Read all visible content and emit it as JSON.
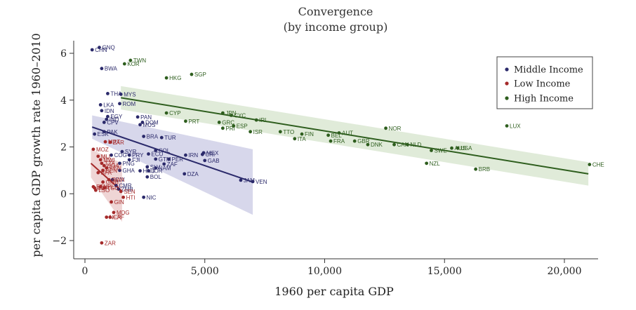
{
  "chart_data": {
    "type": "scatter",
    "title": "Convergence",
    "subtitle": "(by income group)",
    "xlabel": "1960 per capita GDP",
    "ylabel": "per capita GDP growth rate 1960–2010",
    "xlim": [
      -300,
      21300
    ],
    "ylim": [
      -2.5,
      6.6
    ],
    "xticks": [
      0,
      5000,
      10000,
      15000,
      20000
    ],
    "xtick_labels": [
      "0",
      "5,000",
      "10,000",
      "15,000",
      "20,000"
    ],
    "yticks": [
      -2,
      0,
      2,
      4,
      6
    ],
    "ytick_labels": [
      "−2",
      "0",
      "2",
      "4",
      "6"
    ],
    "grid": false,
    "legend_position": "top-right",
    "series": [
      {
        "name": "Middle Income",
        "color": "#2b2a6b",
        "ci_color": "#c9c9e4",
        "fit": {
          "x": [
            300,
            7000
          ],
          "y": [
            2.85,
            0.5
          ],
          "ci_upper": [
            3.35,
            1.9
          ],
          "ci_lower": [
            2.35,
            -0.9
          ]
        },
        "points": [
          {
            "label": "GNQ",
            "x": 600,
            "y": 6.25
          },
          {
            "label": "CHN",
            "x": 300,
            "y": 6.15
          },
          {
            "label": "BWA",
            "x": 700,
            "y": 5.35
          },
          {
            "label": "THA",
            "x": 950,
            "y": 4.28
          },
          {
            "label": "MYS",
            "x": 1500,
            "y": 4.25
          },
          {
            "label": "ROM",
            "x": 1450,
            "y": 3.85
          },
          {
            "label": "LKA",
            "x": 650,
            "y": 3.8
          },
          {
            "label": "IDN",
            "x": 700,
            "y": 3.55
          },
          {
            "label": "EGY",
            "x": 950,
            "y": 3.3
          },
          {
            "label": "IND",
            "x": 900,
            "y": 3.18
          },
          {
            "label": "PAN",
            "x": 2200,
            "y": 3.28
          },
          {
            "label": "DOM",
            "x": 2400,
            "y": 3.05
          },
          {
            "label": "MUS",
            "x": 2300,
            "y": 2.95
          },
          {
            "label": "CPV",
            "x": 800,
            "y": 3.05
          },
          {
            "label": "PAK",
            "x": 800,
            "y": 2.65
          },
          {
            "label": "BRA",
            "x": 2450,
            "y": 2.45
          },
          {
            "label": "TUR",
            "x": 3200,
            "y": 2.4
          },
          {
            "label": "ESK",
            "x": 400,
            "y": 2.55
          },
          {
            "label": "SYR",
            "x": 1550,
            "y": 1.8
          },
          {
            "label": "COL",
            "x": 2950,
            "y": 1.85
          },
          {
            "label": "COG",
            "x": 1100,
            "y": 1.65
          },
          {
            "label": "PRY",
            "x": 1850,
            "y": 1.65
          },
          {
            "label": "ECU",
            "x": 2650,
            "y": 1.7
          },
          {
            "label": "IRN",
            "x": 4200,
            "y": 1.65
          },
          {
            "label": "MEX",
            "x": 4950,
            "y": 1.75
          },
          {
            "label": "GTM",
            "x": 2950,
            "y": 1.48
          },
          {
            "label": "PER",
            "x": 3500,
            "y": 1.48
          },
          {
            "label": "FJI",
            "x": 1850,
            "y": 1.45
          },
          {
            "label": "GAB",
            "x": 5000,
            "y": 1.42
          },
          {
            "label": "CRI",
            "x": 4900,
            "y": 1.68
          },
          {
            "label": "PNG",
            "x": 1450,
            "y": 1.3
          },
          {
            "label": "ZAF",
            "x": 3300,
            "y": 1.27
          },
          {
            "label": "SLV",
            "x": 2600,
            "y": 1.15
          },
          {
            "label": "NAM",
            "x": 2950,
            "y": 1.1
          },
          {
            "label": "GHA",
            "x": 1450,
            "y": 1.0
          },
          {
            "label": "HND",
            "x": 2300,
            "y": 0.98
          },
          {
            "label": "JOR",
            "x": 2650,
            "y": 0.98
          },
          {
            "label": "BOL",
            "x": 2600,
            "y": 0.72
          },
          {
            "label": "DZA",
            "x": 4150,
            "y": 0.85
          },
          {
            "label": "JAM",
            "x": 6500,
            "y": 0.58
          },
          {
            "label": "VEN",
            "x": 7000,
            "y": 0.52
          },
          {
            "label": "CIV",
            "x": 1150,
            "y": 0.6
          },
          {
            "label": "CMR",
            "x": 1300,
            "y": 0.35
          },
          {
            "label": "ZMB",
            "x": 1400,
            "y": 0.2
          },
          {
            "label": "NIC",
            "x": 2450,
            "y": -0.15
          }
        ]
      },
      {
        "name": "Low Income",
        "color": "#a52a2a",
        "ci_color": "#e9c7c7",
        "fit": {
          "x": [
            250,
            1550
          ],
          "y": [
            1.3,
            0.1
          ],
          "ci_upper": [
            1.9,
            1.3
          ],
          "ci_lower": [
            0.7,
            -1.2
          ]
        },
        "points": [
          {
            "label": "ZAR",
            "x": 1050,
            "y": 2.2
          },
          {
            "label": "MRT",
            "x": 850,
            "y": 2.22
          },
          {
            "label": "MOZ",
            "x": 350,
            "y": 1.9
          },
          {
            "label": "MLI",
            "x": 550,
            "y": 1.6
          },
          {
            "label": "MWI",
            "x": 650,
            "y": 1.45
          },
          {
            "label": "TZA",
            "x": 700,
            "y": 1.3
          },
          {
            "label": "UGA",
            "x": 800,
            "y": 1.2
          },
          {
            "label": "KEN",
            "x": 900,
            "y": 1.1
          },
          {
            "label": "BEN",
            "x": 750,
            "y": 1.0
          },
          {
            "label": "BFA",
            "x": 550,
            "y": 0.9
          },
          {
            "label": "RWA",
            "x": 1000,
            "y": 0.6
          },
          {
            "label": "GMB",
            "x": 750,
            "y": 0.5
          },
          {
            "label": "NPL",
            "x": 650,
            "y": 0.3
          },
          {
            "label": "BDI",
            "x": 400,
            "y": 0.25
          },
          {
            "label": "TGO",
            "x": 800,
            "y": 0.25
          },
          {
            "label": "ETH",
            "x": 350,
            "y": 0.3
          },
          {
            "label": "SEN",
            "x": 1500,
            "y": 0.1
          },
          {
            "label": "LSO",
            "x": 450,
            "y": 0.15
          },
          {
            "label": "HTI",
            "x": 1600,
            "y": -0.15
          },
          {
            "label": "GIN",
            "x": 1100,
            "y": -0.35
          },
          {
            "label": "MDG",
            "x": 1200,
            "y": -0.8
          },
          {
            "label": "NER",
            "x": 900,
            "y": -1.0
          },
          {
            "label": "CAF",
            "x": 1050,
            "y": -1.0
          },
          {
            "label": "ZAR",
            "x": 700,
            "y": -2.1
          }
        ]
      },
      {
        "name": "High Income",
        "color": "#2e5e1e",
        "ci_color": "#d6e4cc",
        "fit": {
          "x": [
            1500,
            21000
          ],
          "y": [
            4.1,
            0.85
          ],
          "ci_upper": [
            4.6,
            1.35
          ],
          "ci_lower": [
            3.6,
            0.35
          ]
        },
        "points": [
          {
            "label": "TWN",
            "x": 1900,
            "y": 5.7
          },
          {
            "label": "KOR",
            "x": 1650,
            "y": 5.55
          },
          {
            "label": "SGP",
            "x": 4450,
            "y": 5.1
          },
          {
            "label": "HKG",
            "x": 3400,
            "y": 4.95
          },
          {
            "label": "CYP",
            "x": 3400,
            "y": 3.45
          },
          {
            "label": "PRT",
            "x": 4200,
            "y": 3.1
          },
          {
            "label": "JPN",
            "x": 5750,
            "y": 3.45
          },
          {
            "label": "CYC",
            "x": 6100,
            "y": 3.35
          },
          {
            "label": "IRL",
            "x": 7150,
            "y": 3.15
          },
          {
            "label": "GRC",
            "x": 5600,
            "y": 3.05
          },
          {
            "label": "ESP",
            "x": 6200,
            "y": 2.9
          },
          {
            "label": "PRI",
            "x": 5750,
            "y": 2.8
          },
          {
            "label": "ISR",
            "x": 6900,
            "y": 2.65
          },
          {
            "label": "TTO",
            "x": 8150,
            "y": 2.65
          },
          {
            "label": "FIN",
            "x": 9050,
            "y": 2.55
          },
          {
            "label": "BEL",
            "x": 10150,
            "y": 2.5
          },
          {
            "label": "AUT",
            "x": 10600,
            "y": 2.6
          },
          {
            "label": "ITA",
            "x": 8750,
            "y": 2.35
          },
          {
            "label": "FRA",
            "x": 10250,
            "y": 2.25
          },
          {
            "label": "GBR",
            "x": 11250,
            "y": 2.25
          },
          {
            "label": "DNK",
            "x": 11800,
            "y": 2.1
          },
          {
            "label": "NOR",
            "x": 12550,
            "y": 2.8
          },
          {
            "label": "CAN",
            "x": 12900,
            "y": 2.1
          },
          {
            "label": "NLD",
            "x": 13450,
            "y": 2.1
          },
          {
            "label": "SWE",
            "x": 14450,
            "y": 1.85
          },
          {
            "label": "AUS",
            "x": 15300,
            "y": 1.95
          },
          {
            "label": "USA",
            "x": 15550,
            "y": 1.95
          },
          {
            "label": "NZL",
            "x": 14250,
            "y": 1.3
          },
          {
            "label": "BRB",
            "x": 16300,
            "y": 1.05
          },
          {
            "label": "LUX",
            "x": 17600,
            "y": 2.9
          },
          {
            "label": "CHE",
            "x": 21050,
            "y": 1.25
          }
        ]
      }
    ]
  }
}
